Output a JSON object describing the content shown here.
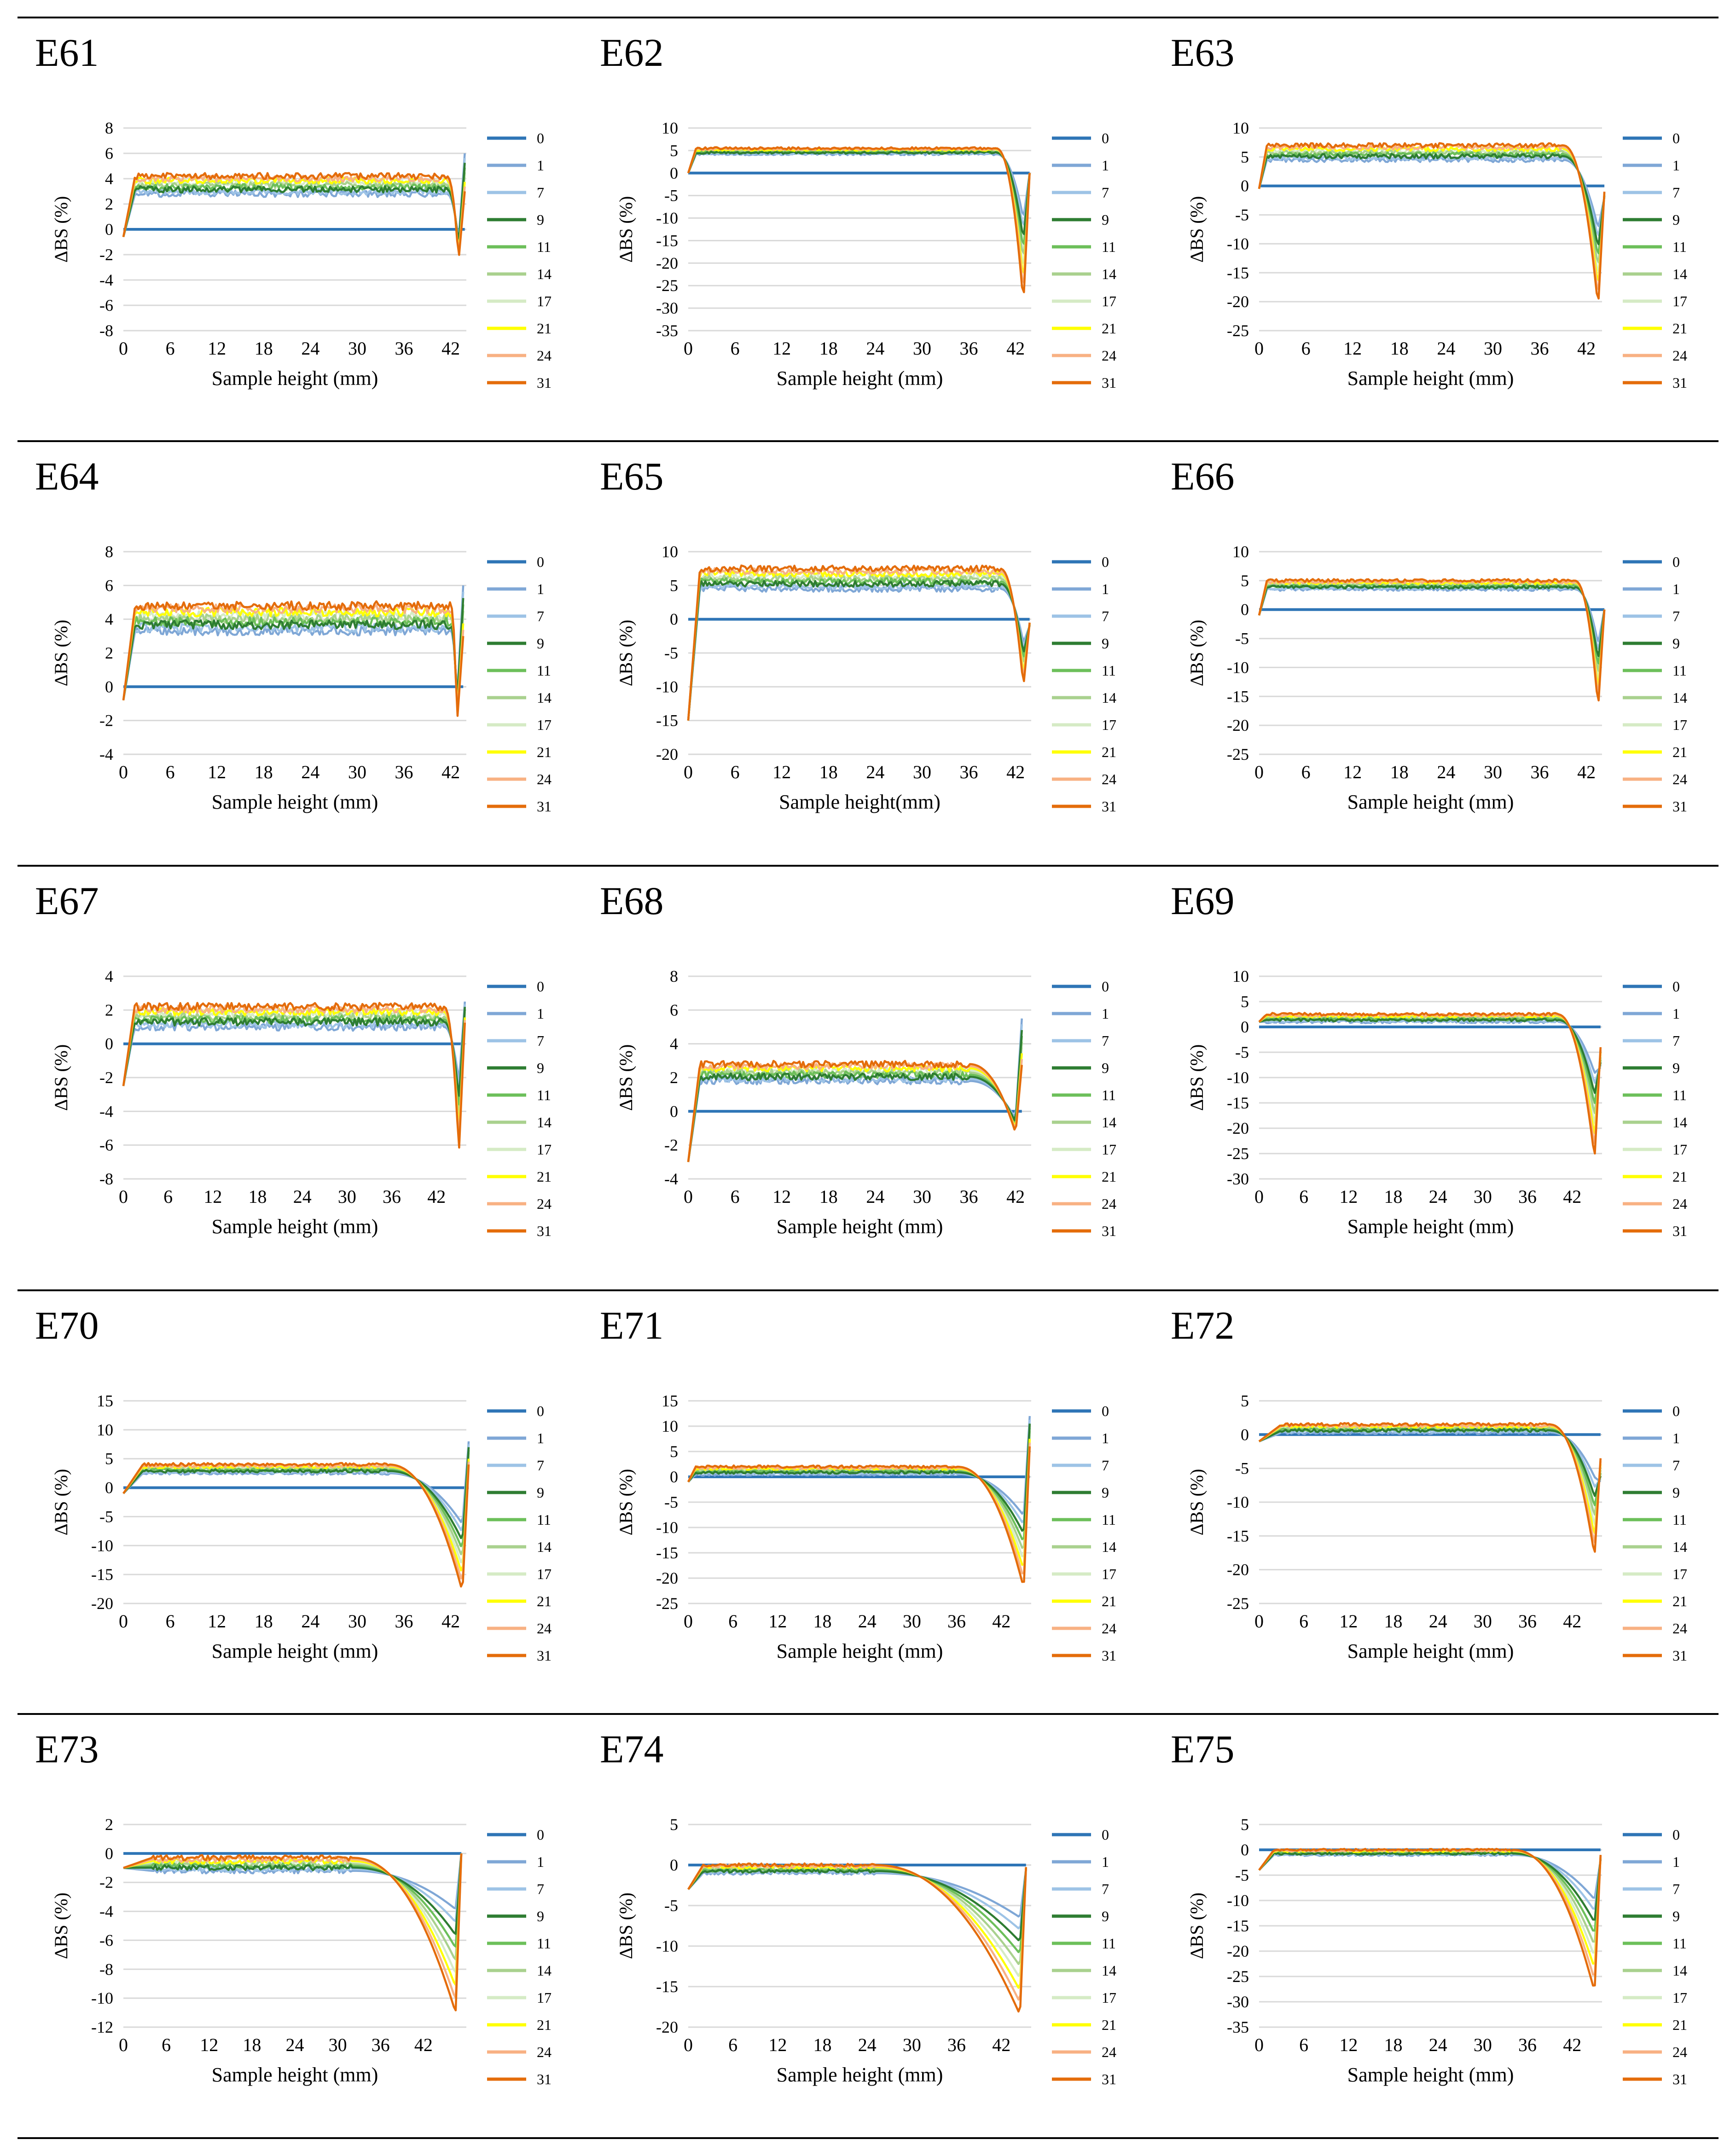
{
  "legend_labels": [
    "0",
    "1",
    "7",
    "9",
    "11",
    "14",
    "17",
    "21",
    "24",
    "31"
  ],
  "series_colors": [
    "#2E75B6",
    "#7FA7D6",
    "#9DC3E6",
    "#2E7D32",
    "#6CBF5A",
    "#A9D18E",
    "#D5EBC5",
    "#FFFF00",
    "#F8B183",
    "#E46C0A"
  ],
  "chart_data": [
    {
      "panel_label": "E61",
      "type": "line",
      "xlabel": "Sample height (mm)",
      "ylabel": "ΔBS (%)",
      "ylim": [
        -8,
        8
      ],
      "yticks": [
        -8,
        -6,
        -4,
        -2,
        0,
        2,
        4,
        6,
        8
      ],
      "xlim": [
        0,
        44
      ],
      "xticks": [
        0,
        6,
        12,
        18,
        24,
        30,
        36,
        42
      ],
      "profile": {
        "start": -0.6,
        "rise_end": 1.5,
        "plateau_min": 2.8,
        "plateau_max": 4.2,
        "drop_start": 41.5,
        "drop_min": -2.5,
        "end_spike": 6,
        "dip_at": 43
      }
    },
    {
      "panel_label": "E62",
      "type": "line",
      "xlabel": "Sample height (mm)",
      "ylabel": "ΔBS (%)",
      "ylim": [
        -35,
        10
      ],
      "yticks": [
        -35,
        -30,
        -25,
        -20,
        -15,
        -10,
        -5,
        0,
        5,
        10
      ],
      "xlim": [
        0,
        44
      ],
      "xticks": [
        0,
        6,
        12,
        18,
        24,
        30,
        36,
        42
      ],
      "profile": {
        "start": 0,
        "rise_end": 1,
        "plateau_min": 4.2,
        "plateau_max": 5.5,
        "drop_start": 39.5,
        "drop_min": -29,
        "end_spike": 0,
        "dip_at": 43
      }
    },
    {
      "panel_label": "E63",
      "type": "line",
      "xlabel": "Sample height (mm)",
      "ylabel": "ΔBS (%)",
      "ylim": [
        -25,
        10
      ],
      "yticks": [
        -25,
        -20,
        -15,
        -10,
        -5,
        0,
        5,
        10
      ],
      "xlim": [
        0,
        44
      ],
      "xticks": [
        0,
        6,
        12,
        18,
        24,
        30,
        36,
        42
      ],
      "profile": {
        "start": -0.5,
        "rise_end": 1,
        "plateau_min": 4.5,
        "plateau_max": 7,
        "drop_start": 39,
        "drop_min": -21,
        "end_spike": -2,
        "dip_at": 43.5
      }
    },
    {
      "panel_label": "E64",
      "type": "line",
      "xlabel": "Sample height (mm)",
      "ylabel": "ΔBS (%)",
      "ylim": [
        -4,
        8
      ],
      "yticks": [
        -4,
        -2,
        0,
        2,
        4,
        6,
        8
      ],
      "xlim": [
        0,
        44
      ],
      "xticks": [
        0,
        6,
        12,
        18,
        24,
        30,
        36,
        42
      ],
      "profile": {
        "start": -0.8,
        "rise_end": 1.5,
        "plateau_min": 3.3,
        "plateau_max": 4.8,
        "drop_start": 42,
        "drop_min": -2.2,
        "end_spike": 6,
        "dip_at": 42.8
      }
    },
    {
      "panel_label": "E65",
      "type": "line",
      "xlabel": "Sample height(mm)",
      "ylabel": "ΔBS (%)",
      "ylim": [
        -20,
        10
      ],
      "yticks": [
        -20,
        -15,
        -10,
        -5,
        0,
        5,
        10
      ],
      "xlim": [
        0,
        44
      ],
      "xticks": [
        0,
        6,
        12,
        18,
        24,
        30,
        36,
        42
      ],
      "profile": {
        "start": -15,
        "rise_end": 1.5,
        "plateau_min": 4.5,
        "plateau_max": 7.5,
        "drop_start": 40,
        "drop_min": -10,
        "end_spike": -1,
        "dip_at": 43
      }
    },
    {
      "panel_label": "E66",
      "type": "line",
      "xlabel": "Sample height (mm)",
      "ylabel": "ΔBS (%)",
      "ylim": [
        -25,
        10
      ],
      "yticks": [
        -25,
        -20,
        -15,
        -10,
        -5,
        0,
        5,
        10
      ],
      "xlim": [
        0,
        44
      ],
      "xticks": [
        0,
        6,
        12,
        18,
        24,
        30,
        36,
        42
      ],
      "profile": {
        "start": -1,
        "rise_end": 1,
        "plateau_min": 3.5,
        "plateau_max": 5,
        "drop_start": 40.5,
        "drop_min": -17,
        "end_spike": 0,
        "dip_at": 43.5
      }
    },
    {
      "panel_label": "E67",
      "type": "line",
      "xlabel": "Sample height (mm)",
      "ylabel": "ΔBS (%)",
      "ylim": [
        -8,
        4
      ],
      "yticks": [
        -8,
        -6,
        -4,
        -2,
        0,
        2,
        4
      ],
      "xlim": [
        0,
        46
      ],
      "xticks": [
        0,
        6,
        12,
        18,
        24,
        30,
        36,
        42
      ],
      "profile": {
        "start": -2.5,
        "rise_end": 1.5,
        "plateau_min": 1,
        "plateau_max": 2.2,
        "drop_start": 43,
        "drop_min": -6.5,
        "end_spike": 2.5,
        "dip_at": 45
      }
    },
    {
      "panel_label": "E68",
      "type": "line",
      "xlabel": "Sample height (mm)",
      "ylabel": "ΔBS (%)",
      "ylim": [
        -4,
        8
      ],
      "yticks": [
        -4,
        -2,
        0,
        2,
        4,
        6,
        8
      ],
      "xlim": [
        0,
        44
      ],
      "xticks": [
        0,
        6,
        12,
        18,
        24,
        30,
        36,
        42
      ],
      "profile": {
        "start": -3,
        "rise_end": 1.5,
        "plateau_min": 1.8,
        "plateau_max": 2.8,
        "drop_start": 36,
        "drop_min": -1.3,
        "end_spike": 5.5,
        "dip_at": 42
      }
    },
    {
      "panel_label": "E69",
      "type": "line",
      "xlabel": "Sample height (mm)",
      "ylabel": "ΔBS (%)",
      "ylim": [
        -30,
        10
      ],
      "yticks": [
        -30,
        -25,
        -20,
        -15,
        -10,
        -5,
        0,
        5,
        10
      ],
      "xlim": [
        0,
        46
      ],
      "xticks": [
        0,
        6,
        12,
        18,
        24,
        30,
        36,
        42
      ],
      "profile": {
        "start": 1,
        "rise_end": 1,
        "plateau_min": 1,
        "plateau_max": 2.5,
        "drop_start": 40,
        "drop_min": -26,
        "end_spike": -8,
        "dip_at": 45
      }
    },
    {
      "panel_label": "E70",
      "type": "line",
      "xlabel": "Sample height (mm)",
      "ylabel": "ΔBS (%)",
      "ylim": [
        -20,
        15
      ],
      "yticks": [
        -20,
        -15,
        -10,
        -5,
        0,
        5,
        10,
        15
      ],
      "xlim": [
        0,
        44
      ],
      "xticks": [
        0,
        6,
        12,
        18,
        24,
        30,
        36,
        42
      ],
      "profile": {
        "start": -1,
        "rise_end": 2.5,
        "plateau_min": 2.5,
        "plateau_max": 4,
        "drop_start": 34,
        "drop_min": -18,
        "end_spike": 8,
        "dip_at": 43.5
      }
    },
    {
      "panel_label": "E71",
      "type": "line",
      "xlabel": "Sample height (mm)",
      "ylabel": "ΔBS (%)",
      "ylim": [
        -25,
        15
      ],
      "yticks": [
        -25,
        -20,
        -15,
        -10,
        -5,
        0,
        5,
        10,
        15
      ],
      "xlim": [
        0,
        46
      ],
      "xticks": [
        0,
        6,
        12,
        18,
        24,
        30,
        36,
        42
      ],
      "profile": {
        "start": -1,
        "rise_end": 1,
        "plateau_min": 0.5,
        "plateau_max": 2,
        "drop_start": 36,
        "drop_min": -22,
        "end_spike": 12,
        "dip_at": 45
      }
    },
    {
      "panel_label": "E72",
      "type": "line",
      "xlabel": "Sample height (mm)",
      "ylabel": "ΔBS (%)",
      "ylim": [
        -25,
        5
      ],
      "yticks": [
        -25,
        -20,
        -15,
        -10,
        -5,
        0,
        5
      ],
      "xlim": [
        0,
        46
      ],
      "xticks": [
        0,
        6,
        12,
        18,
        24,
        30,
        36,
        42
      ],
      "profile": {
        "start": -1,
        "rise_end": 3,
        "plateau_min": 0.3,
        "plateau_max": 1.5,
        "drop_start": 39,
        "drop_min": -18,
        "end_spike": -7,
        "dip_at": 45
      }
    },
    {
      "panel_label": "E73",
      "type": "line",
      "xlabel": "Sample height (mm)",
      "ylabel": "ΔBS (%)",
      "ylim": [
        -12,
        2
      ],
      "yticks": [
        -12,
        -10,
        -8,
        -6,
        -4,
        -2,
        0,
        2
      ],
      "xlim": [
        0,
        48
      ],
      "xticks": [
        0,
        6,
        12,
        18,
        24,
        30,
        36,
        42
      ],
      "profile": {
        "start": -1,
        "rise_end": 4,
        "plateau_min": -1.2,
        "plateau_max": -0.3,
        "drop_start": 32,
        "drop_min": -11,
        "end_spike": 0,
        "dip_at": 46.5
      }
    },
    {
      "panel_label": "E74",
      "type": "line",
      "xlabel": "Sample height (mm)",
      "ylabel": "ΔBS (%)",
      "ylim": [
        -20,
        5
      ],
      "yticks": [
        -20,
        -15,
        -10,
        -5,
        0,
        5
      ],
      "xlim": [
        0,
        46
      ],
      "xticks": [
        0,
        6,
        12,
        18,
        24,
        30,
        36,
        42
      ],
      "profile": {
        "start": -3,
        "rise_end": 2,
        "plateau_min": -1,
        "plateau_max": 0,
        "drop_start": 25,
        "drop_min": -18.5,
        "end_spike": -0.5,
        "dip_at": 44.5
      }
    },
    {
      "panel_label": "E75",
      "type": "line",
      "xlabel": "Sample height (mm)",
      "ylabel": "ΔBS (%)",
      "ylim": [
        -35,
        5
      ],
      "yticks": [
        -35,
        -30,
        -25,
        -20,
        -15,
        -10,
        -5,
        0,
        5
      ],
      "xlim": [
        0,
        46
      ],
      "xticks": [
        0,
        6,
        12,
        18,
        24,
        30,
        36,
        42
      ],
      "profile": {
        "start": -4,
        "rise_end": 2,
        "plateau_min": -1,
        "plateau_max": 0,
        "drop_start": 34,
        "drop_min": -28,
        "end_spike": -2,
        "dip_at": 45
      }
    }
  ]
}
